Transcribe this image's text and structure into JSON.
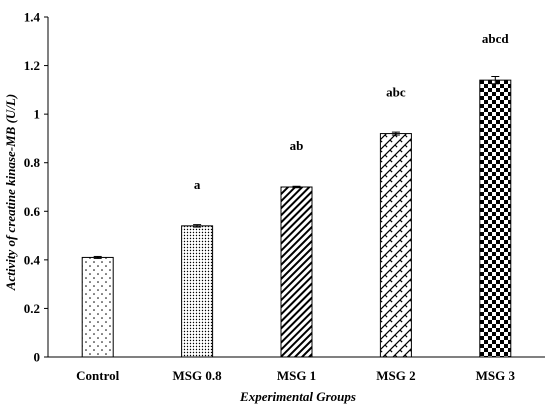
{
  "chart_data": {
    "type": "bar",
    "title": "",
    "xlabel": "Experimental Groups",
    "ylabel": "Activity of creatine kinase-MB (U/L)",
    "ylim": [
      0,
      1.4
    ],
    "yticks": [
      "0",
      "0.2",
      "0.4",
      "0.6",
      "0.8",
      "1",
      "1.2",
      "1.4"
    ],
    "categories": [
      "Control",
      "MSG 0.8",
      "MSG 1",
      "MSG 2",
      "MSG 3"
    ],
    "values": [
      0.41,
      0.54,
      0.7,
      0.92,
      1.14
    ],
    "errors": [
      0.004,
      0.005,
      0.003,
      0.006,
      0.015
    ],
    "significance_labels": [
      "",
      "a",
      "ab",
      "abc",
      "abcd"
    ],
    "bar_patterns": [
      "sparse-dots",
      "dense-dots",
      "diagonal-stripes",
      "weave",
      "checkerboard"
    ],
    "grid": false,
    "legend": "none",
    "colors": {
      "bar_fill": "#000000",
      "bar_background": "#ffffff",
      "axis": "#000000"
    }
  }
}
